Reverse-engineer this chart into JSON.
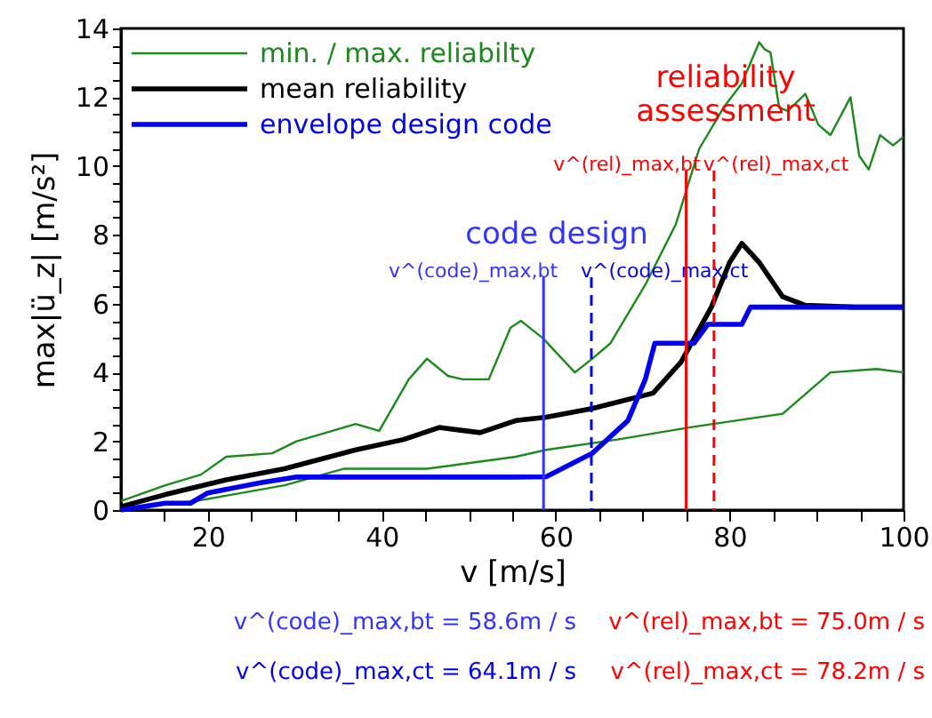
{
  "chart_data": {
    "type": "line",
    "xlabel": "v  [m/s]",
    "ylabel": "max|ü_z| [m/s²]",
    "xlim": [
      10,
      100
    ],
    "ylim": [
      0,
      14
    ],
    "xticks": [
      {
        "value": 15,
        "label": null
      },
      20,
      {
        "value": 25,
        "label": null
      },
      {
        "value": 30,
        "label": null
      },
      {
        "value": 35,
        "label": null
      },
      40,
      {
        "value": 45,
        "label": null
      },
      {
        "value": 50,
        "label": null
      },
      {
        "value": 55,
        "label": null
      },
      60,
      {
        "value": 65,
        "label": null
      },
      {
        "value": 70,
        "label": null
      },
      {
        "value": 75,
        "label": null
      },
      80,
      {
        "value": 85,
        "label": null
      },
      {
        "value": 90,
        "label": null
      },
      {
        "value": 95,
        "label": null
      },
      100
    ],
    "yticks": [
      0,
      {
        "value": 0.5,
        "label": null
      },
      {
        "value": 1,
        "label": null
      },
      {
        "value": 1.5,
        "label": null
      },
      2,
      {
        "value": 2.5,
        "label": null
      },
      {
        "value": 3,
        "label": null
      },
      {
        "value": 3.5,
        "label": null
      },
      4,
      {
        "value": 4.5,
        "label": null
      },
      {
        "value": 5,
        "label": null
      },
      {
        "value": 5.5,
        "label": null
      },
      6,
      {
        "value": 6.5,
        "label": null
      },
      {
        "value": 7,
        "label": null
      },
      {
        "value": 7.5,
        "label": null
      },
      8,
      {
        "value": 8.5,
        "label": null
      },
      {
        "value": 9,
        "label": null
      },
      {
        "value": 9.5,
        "label": null
      },
      10,
      {
        "value": 10.5,
        "label": null
      },
      {
        "value": 11,
        "label": null
      },
      {
        "value": 11.5,
        "label": null
      },
      12,
      {
        "value": 12.5,
        "label": null
      },
      {
        "value": 13,
        "label": null
      },
      {
        "value": 13.5,
        "label": null
      },
      14
    ],
    "grid": false,
    "legend": "top left",
    "marker": "none",
    "line_style": "solid",
    "series": [
      {
        "name": "min. / max. reliabilty",
        "color": "#1a8a1a",
        "x": [
          10,
          15.1,
          19.2,
          22.1,
          27.4,
          30.2,
          37,
          39.7,
          43.1,
          45.2,
          47.6,
          49.3,
          52.3,
          54.8,
          56,
          58.5,
          62.2,
          64.2,
          66.3,
          70.3,
          73.8,
          76.5,
          79.3,
          81.4,
          83.4,
          84,
          84.7,
          85.7,
          86.7,
          88.7,
          90.2,
          91.6,
          93.9,
          94.9,
          96,
          97.3,
          98.8,
          100
        ],
        "values": [
          0.26,
          0.72,
          1.03,
          1.55,
          1.65,
          2.0,
          2.5,
          2.3,
          3.8,
          4.4,
          3.9,
          3.8,
          3.8,
          5.3,
          5.5,
          5.0,
          4.0,
          4.4,
          4.85,
          6.55,
          8.3,
          10.5,
          11.7,
          12.4,
          13.6,
          13.4,
          13.3,
          11.7,
          11.6,
          12.1,
          11.2,
          10.9,
          12.0,
          10.3,
          9.9,
          10.9,
          10.6,
          10.85
        ]
      },
      {
        "color": "#1a8a1a",
        "x": [
          10,
          18.6,
          28.8,
          35.6,
          45.2,
          55.4,
          58.9,
          67.1,
          75.3,
          86.1,
          91.6,
          96.9,
          100
        ],
        "values": [
          0.05,
          0.26,
          0.72,
          1.2,
          1.2,
          1.55,
          1.75,
          2.05,
          2.4,
          2.8,
          4.0,
          4.1,
          4.0
        ]
      },
      {
        "name": "mean reliability",
        "color": "#000000",
        "x": [
          10,
          15.1,
          22.1,
          28.8,
          37,
          42.5,
          46.6,
          51.3,
          55.4,
          58.9,
          64.2,
          71.2,
          74.4,
          77.9,
          80,
          81.4,
          83.4,
          86.1,
          88.7,
          94.3,
          100
        ],
        "values": [
          0.1,
          0.45,
          0.88,
          1.2,
          1.75,
          2.05,
          2.4,
          2.25,
          2.6,
          2.7,
          2.95,
          3.4,
          4.3,
          5.9,
          7.2,
          7.75,
          7.2,
          6.2,
          5.95,
          5.9,
          5.9
        ]
      },
      {
        "name": "envelope design code",
        "color": "#0000ee",
        "x": [
          10,
          15.1,
          18,
          20,
          26.2,
          30.2,
          55.4,
          58.9,
          64.2,
          68.3,
          70.3,
          71.4,
          75.9,
          77.5,
          81.4,
          82.4,
          100
        ],
        "values": [
          0,
          0.2,
          0.2,
          0.5,
          0.8,
          0.96,
          0.96,
          0.97,
          1.65,
          2.6,
          3.8,
          4.85,
          4.85,
          5.4,
          5.4,
          5.9,
          5.9
        ]
      }
    ],
    "ref_lines": [
      {
        "axis": "x",
        "value": 58.6,
        "label": "v^(code)_max,bt",
        "color": "#3333ff",
        "line_style": "solid"
      },
      {
        "axis": "x",
        "value": 64.1,
        "label": "v^(code)_max,ct",
        "color": "#0000ee",
        "line_style": "dashed"
      },
      {
        "axis": "x",
        "value": 75.0,
        "label": "v^(rel)_max,bt",
        "color": "#ff0000",
        "line_style": "solid"
      },
      {
        "axis": "x",
        "value": 78.2,
        "label": "v^(rel)_max,ct",
        "color": "#ff0000",
        "line_style": "dashed"
      }
    ],
    "annotations": [
      "code design",
      "reliability\nassessment",
      "v^(code)_max,bt = 58.6m / s",
      "v^(rel)_max,bt = 75.0m / s",
      "v^(code)_max,ct = 64.1m / s",
      "v^(rel)_max,ct = 78.2m / s"
    ]
  }
}
